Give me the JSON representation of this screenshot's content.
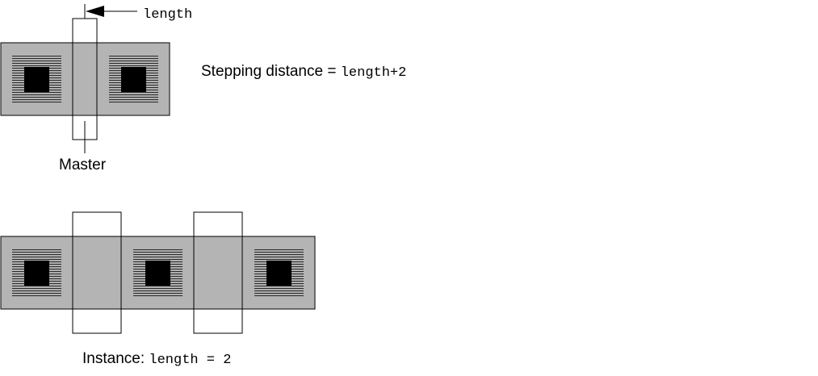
{
  "labels": {
    "length_arrow": "length",
    "stepping_prefix": "Stepping distance = ",
    "stepping_value": "length+2",
    "master": "Master",
    "instance_prefix": "Instance: ",
    "instance_value": "length = 2"
  },
  "colors": {
    "fill": "#b4b4b4",
    "stroke": "#000000",
    "dark": "#000000",
    "hatch": "#3a3a3a"
  }
}
